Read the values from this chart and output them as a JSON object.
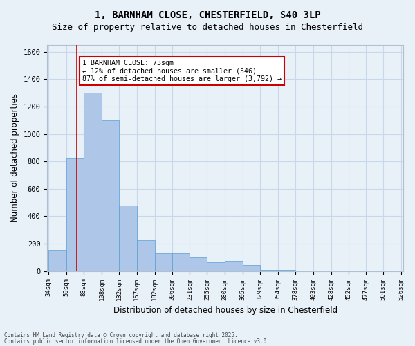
{
  "title_line1": "1, BARNHAM CLOSE, CHESTERFIELD, S40 3LP",
  "title_line2": "Size of property relative to detached houses in Chesterfield",
  "xlabel": "Distribution of detached houses by size in Chesterfield",
  "ylabel": "Number of detached properties",
  "annotation_line1": "1 BARNHAM CLOSE: 73sqm",
  "annotation_line2": "← 12% of detached houses are smaller (546)",
  "annotation_line3": "87% of semi-detached houses are larger (3,792) →",
  "footer_line1": "Contains HM Land Registry data © Crown copyright and database right 2025.",
  "footer_line2": "Contains public sector information licensed under the Open Government Licence v3.0.",
  "property_size_sqm": 73,
  "bar_edges": [
    34,
    59,
    83,
    108,
    132,
    157,
    182,
    206,
    231,
    255,
    280,
    305,
    329,
    354,
    378,
    403,
    428,
    452,
    477,
    501,
    526
  ],
  "bar_heights": [
    155,
    820,
    1300,
    1100,
    480,
    225,
    130,
    130,
    100,
    65,
    75,
    45,
    10,
    10,
    5,
    5,
    5,
    5,
    0,
    5
  ],
  "bar_color": "#aec6e8",
  "bar_edge_color": "#5a9fd4",
  "grid_color": "#c8d8e8",
  "background_color": "#e8f0f8",
  "vline_color": "#cc0000",
  "annotation_box_color": "#cc0000",
  "ylim": [
    0,
    1650
  ],
  "yticks": [
    0,
    200,
    400,
    600,
    800,
    1000,
    1200,
    1400,
    1600
  ]
}
